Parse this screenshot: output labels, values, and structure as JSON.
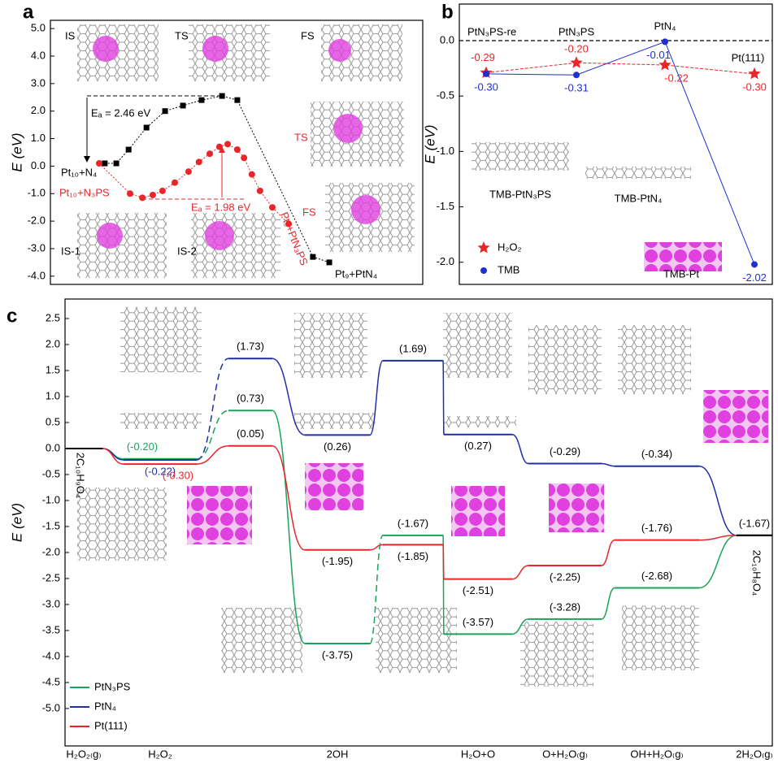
{
  "chart_data": [
    {
      "type": "line",
      "panel": "a",
      "ylabel": "E (eV)",
      "xlim": [
        0,
        100
      ],
      "ylim": [
        -4.3,
        5.3
      ],
      "yticks": [
        {
          "value": 5,
          "label": "5.0"
        },
        {
          "value": 4,
          "label": "4.0"
        },
        {
          "value": 3,
          "label": "3.0"
        },
        {
          "value": 2,
          "label": "2.0"
        },
        {
          "value": 1,
          "label": "1.0"
        },
        {
          "value": 0,
          "label": "0.0"
        },
        {
          "value": -1,
          "label": "-1.0"
        },
        {
          "value": -2,
          "label": "-2.0"
        },
        {
          "value": -3,
          "label": "-3.0"
        },
        {
          "value": -4,
          "label": "-4.0"
        }
      ],
      "series": [
        {
          "color": "#000000",
          "marker": "square",
          "x": [
            14.6,
            17.7,
            21.0,
            25.8,
            30.8,
            35.6,
            40.6,
            46.1,
            50.2,
            70.5,
            74.9
          ],
          "values": [
            0.1,
            0.1,
            0.6,
            1.4,
            2.0,
            2.2,
            2.4,
            2.55,
            2.4,
            -3.3,
            -3.5
          ]
        },
        {
          "color": "#e8262a",
          "marker": "circle",
          "x": [
            13.1,
            21.4,
            24.7,
            27.5,
            30.1,
            33.4,
            37.1,
            39.9,
            42.8,
            45.4,
            47.6,
            50.2,
            52.0,
            54.1,
            56.3,
            59.6,
            64.0
          ],
          "values": [
            0.1,
            -1.0,
            -1.15,
            -1.05,
            -0.9,
            -0.6,
            -0.2,
            0.15,
            0.45,
            0.7,
            0.8,
            0.6,
            0.3,
            -0.3,
            -0.9,
            -1.5,
            -2.1
          ]
        }
      ],
      "annotations": [
        {
          "text": "IS",
          "color": "#000000"
        },
        {
          "text": "TS",
          "color": "#000000"
        },
        {
          "text": "FS",
          "color": "#000000"
        },
        {
          "text": "TS",
          "color": "#e8262a"
        },
        {
          "text": "FS",
          "color": "#e8262a"
        },
        {
          "text": "Eₐ = 2.46 eV",
          "color": "#000000"
        },
        {
          "text": "Pt₁₀+N₄",
          "color": "#000000"
        },
        {
          "text": "Pt₁₀+N₃PS",
          "color": "#e8262a"
        },
        {
          "text": "Eₐ = 1.98 eV",
          "color": "#e8262a"
        },
        {
          "text": "IS-1",
          "color": "#000000"
        },
        {
          "text": "IS-2",
          "color": "#000000"
        },
        {
          "text": "Pt₉+PtN₃PS",
          "color": "#e8262a"
        },
        {
          "text": "Pt₉+PtN₄",
          "color": "#000000"
        }
      ]
    },
    {
      "type": "line",
      "panel": "b",
      "ylabel": "E (eV)",
      "ylim": [
        -2.2,
        0.33
      ],
      "reference_line": 0,
      "yticks": [
        {
          "value": 0,
          "label": "0.0"
        },
        -0.5,
        {
          "value": -1,
          "label": "-1.0"
        },
        -1.5,
        {
          "value": -2,
          "label": "-2.0"
        }
      ],
      "categories": [
        "PtN₃PS-re",
        "PtN₃PS",
        "PtN₄",
        "Pt(111)"
      ],
      "legend": "lower left",
      "series": [
        {
          "name": "H₂O₂",
          "color": "#e8262a",
          "marker": "star",
          "values": [
            -0.29,
            -0.2,
            -0.22,
            -0.3
          ],
          "value_labels": [
            "-0.29",
            "-0.20",
            "-0.22",
            "-0.30"
          ]
        },
        {
          "name": "TMB",
          "color": "#1f2fd0",
          "marker": "circle",
          "values": [
            -0.3,
            -0.31,
            -0.01,
            -2.02
          ],
          "value_labels": [
            "-0.30",
            "-0.31",
            "-0.01",
            "-2.02"
          ]
        }
      ],
      "annotations": [
        {
          "text": "TMB-PtN₃PS",
          "color": "#000000"
        },
        {
          "text": "TMB-PtN₄",
          "color": "#000000"
        },
        {
          "text": "TMB-Pt",
          "color": "#000000"
        }
      ]
    },
    {
      "type": "step",
      "panel": "c",
      "ylabel": "E (eV)",
      "ylim": [
        -5.72,
        2.875
      ],
      "endpoint_color": "#000000",
      "yticks": [
        2.5,
        {
          "value": 2,
          "label": "2.0"
        },
        1.5,
        {
          "value": 1,
          "label": "1.0"
        },
        0.5,
        {
          "value": 0,
          "label": "0.0"
        },
        -0.5,
        {
          "value": -1,
          "label": "-1.0"
        },
        -1.5,
        {
          "value": -2,
          "label": "-2.0"
        },
        -2.5,
        {
          "value": -3,
          "label": "-3.0"
        },
        -3.5,
        {
          "value": -4,
          "label": "-4.0"
        },
        -4.5,
        {
          "value": -5,
          "label": "-5.0"
        }
      ],
      "categories": [
        "H₂O₂₍g₎",
        "H₂O₂",
        null,
        "2OH",
        null,
        "H₂O+O",
        "O+H₂O₍g₎",
        "OH+H₂O₍g₎",
        "2H₂O₍g₎"
      ],
      "legend": "lower left",
      "series": [
        {
          "name": "PtN₃PS",
          "color": "#1aa35a",
          "dashed_links": [
            1,
            3
          ],
          "values": [
            0,
            -0.2,
            0.73,
            -3.75,
            -1.67,
            -3.57,
            -3.28,
            -2.68,
            -1.67
          ],
          "value_labels": [
            null,
            "(-0.20)",
            "(0.73)",
            "(-3.75)",
            "(-1.67)",
            "(-3.57)",
            "(-3.28)",
            "(-2.68)",
            "(-1.67)"
          ]
        },
        {
          "name": "PtN₄",
          "color": "#1f2fa8",
          "dashed_links": [
            1
          ],
          "values": [
            0,
            -0.22,
            1.73,
            0.26,
            1.69,
            0.27,
            -0.29,
            -0.34,
            -1.67
          ],
          "value_labels": [
            null,
            "(-0.22)",
            "(1.73)",
            "(0.26)",
            "(1.69)",
            "(0.27)",
            "(-0.29)",
            "(-0.34)",
            null
          ]
        },
        {
          "name": "Pt(111)",
          "color": "#e8262a",
          "dashed_links": [],
          "values": [
            0,
            -0.3,
            0.05,
            -1.95,
            -1.85,
            -2.51,
            -2.25,
            -1.76,
            -1.67
          ],
          "value_labels": [
            null,
            "(-0.30)",
            "(0.05)",
            "(-1.95)",
            "(-1.85)",
            "(-2.51)",
            "(-2.25)",
            "(-1.76)",
            null
          ]
        }
      ],
      "annotations": [
        {
          "text": "2C₁₀H₉O₄",
          "color": "#000000"
        },
        {
          "text": "2C₁₀H₈O₄",
          "color": "#000000"
        }
      ]
    }
  ]
}
